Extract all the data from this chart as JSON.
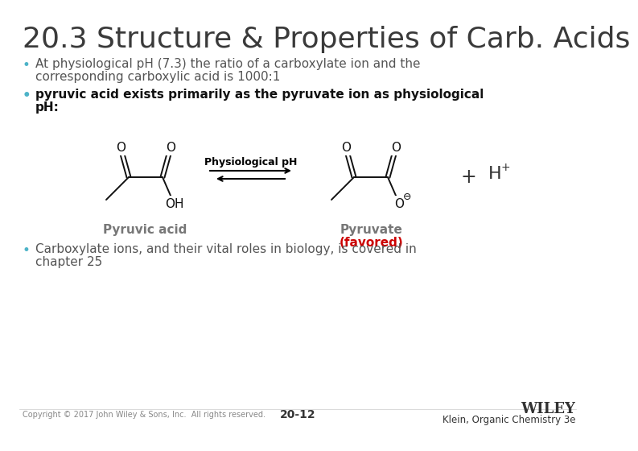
{
  "title": "20.3 Structure & Properties of Carb. Acids",
  "title_fontsize": 26,
  "title_color": "#3a3a3a",
  "bg_color": "#ffffff",
  "bullet1_line1": "At physiological pH (7.3) the ratio of a carboxylate ion and the",
  "bullet1_line2": "corresponding carboxylic acid is 1000:1",
  "bullet2_line1": "pyruvic acid exists primarily as the pyruvate ion as physiological",
  "bullet2_line2": "pH:",
  "bullet3_line1": "Carboxylate ions, and their vital roles in biology, is covered in",
  "bullet3_line2": "chapter 25",
  "bullet_color": "#555555",
  "bullet_teal": "#4db3c8",
  "bullet_bold_color": "#111111",
  "footer_left": "Copyright © 2017 John Wiley & Sons, Inc.  All rights reserved.",
  "footer_center": "20-12",
  "footer_right_top": "WILEY",
  "footer_right_bottom": "Klein, Organic Chemistry 3e",
  "label_pyruvic": "Pyruvic acid",
  "label_pyruvate": "Pyruvate",
  "label_favored": "(favored)",
  "label_physiological": "Physiological pH",
  "gray_color": "#777777",
  "red_color": "#cc0000",
  "black_color": "#111111"
}
